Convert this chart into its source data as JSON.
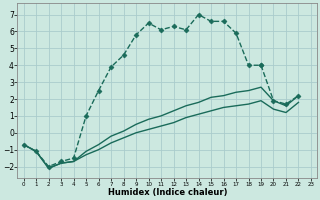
{
  "title": "",
  "xlabel": "Humidex (Indice chaleur)",
  "background_color": "#cce8e0",
  "grid_color": "#aacccc",
  "line_color": "#1a6b5a",
  "xlim": [
    -0.5,
    23.5
  ],
  "ylim": [
    -2.7,
    7.7
  ],
  "xticks": [
    0,
    1,
    2,
    3,
    4,
    5,
    6,
    7,
    8,
    9,
    10,
    11,
    12,
    13,
    14,
    15,
    16,
    17,
    18,
    19,
    20,
    21,
    22,
    23
  ],
  "yticks": [
    -2,
    -1,
    0,
    1,
    2,
    3,
    4,
    5,
    6,
    7
  ],
  "series": [
    {
      "x": [
        0,
        1,
        2,
        3,
        4,
        5,
        6,
        7,
        8,
        9,
        10,
        11,
        12,
        13,
        14,
        15,
        16,
        17,
        18,
        19,
        20,
        21,
        22
      ],
      "y": [
        -0.7,
        -1.1,
        -2.0,
        -1.7,
        -1.5,
        1.0,
        2.5,
        3.9,
        4.6,
        5.8,
        6.5,
        6.1,
        6.3,
        6.1,
        7.0,
        6.6,
        6.6,
        5.9,
        4.0,
        4.0,
        null,
        null,
        null
      ],
      "marker": "D",
      "markersize": 2.5,
      "linestyle": "--",
      "linewidth": 1.0
    },
    {
      "x": [
        0,
        1,
        2,
        3,
        4,
        5,
        6,
        7,
        8,
        9,
        10,
        11,
        12,
        13,
        14,
        15,
        16,
        17,
        18,
        19,
        20,
        21,
        22,
        23
      ],
      "y": [
        -0.7,
        -1.1,
        -2.1,
        -1.8,
        -1.7,
        -1.3,
        -1.0,
        -0.6,
        -0.3,
        0.0,
        0.2,
        0.4,
        0.6,
        0.9,
        1.1,
        1.3,
        1.5,
        1.6,
        1.7,
        1.9,
        1.4,
        1.2,
        1.8,
        null
      ],
      "marker": null,
      "markersize": 0,
      "linestyle": "-",
      "linewidth": 1.0
    },
    {
      "x": [
        0,
        1,
        2,
        3,
        4,
        5,
        6,
        7,
        8,
        9,
        10,
        11,
        12,
        13,
        14,
        15,
        16,
        17,
        18,
        19,
        20,
        21,
        22,
        23
      ],
      "y": [
        -0.7,
        -1.1,
        -2.1,
        -1.8,
        -1.7,
        -1.1,
        -0.7,
        -0.2,
        0.1,
        0.5,
        0.8,
        1.0,
        1.3,
        1.6,
        1.8,
        2.1,
        2.2,
        2.4,
        2.5,
        2.7,
        1.9,
        1.6,
        2.2,
        null
      ],
      "marker": null,
      "markersize": 0,
      "linestyle": "-",
      "linewidth": 1.0
    },
    {
      "x": [
        19,
        20,
        21,
        22
      ],
      "y": [
        4.0,
        1.9,
        1.7,
        2.2
      ],
      "marker": "D",
      "markersize": 2.5,
      "linestyle": "--",
      "linewidth": 1.0
    }
  ]
}
